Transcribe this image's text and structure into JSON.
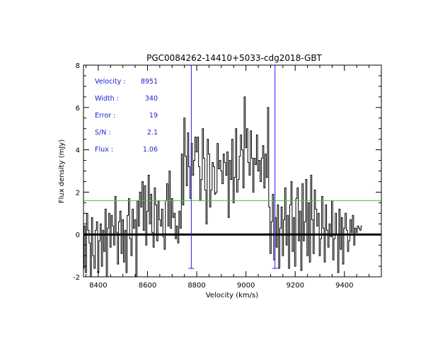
{
  "chart_data": {
    "type": "line",
    "title": "PGC0084262-14410+5033-cdg2018-GBT",
    "xlabel": "Velocity (km/s)",
    "ylabel": "Flux density (mJy)",
    "xlim": [
      8340,
      9550
    ],
    "ylim": [
      -2,
      8
    ],
    "xticks": [
      8400,
      8600,
      8800,
      9000,
      9200,
      9400
    ],
    "yticks": [
      -2,
      0,
      2,
      4,
      6,
      8
    ],
    "grid": false,
    "annotations": [
      {
        "label": "Velocity :",
        "value": "8951"
      },
      {
        "label": "Width :",
        "value": "340"
      },
      {
        "label": "Error :",
        "value": "19"
      },
      {
        "label": "S/N :",
        "value": "2.1"
      },
      {
        "label": "Flux :",
        "value": "1.06"
      }
    ],
    "zero_line": 0,
    "threshold_line": 1.6,
    "markers": [
      {
        "velocity": 8778,
        "y_top": 8,
        "y_bottom": -1.6
      },
      {
        "velocity": 9118,
        "y_top": 8,
        "y_bottom": -1.6
      }
    ],
    "series": [
      {
        "name": "spectrum",
        "x_start": 8340,
        "x_step": 5,
        "values": [
          -1.6,
          0.4,
          -1.8,
          1.0,
          0.2,
          -0.4,
          -2.0,
          0.8,
          -1.0,
          -1.6,
          0.2,
          0.6,
          -1.8,
          -0.3,
          0.5,
          -1.5,
          0.2,
          -0.8,
          1.2,
          -2.0,
          0.3,
          1.0,
          -0.6,
          0.9,
          0.4,
          -0.5,
          1.8,
          0.1,
          -1.4,
          0.6,
          1.1,
          -0.9,
          0.7,
          -1.3,
          0.2,
          -1.8,
          0.9,
          1.7,
          -0.2,
          -1.0,
          1.2,
          0.3,
          0.7,
          -2.0,
          1.6,
          0.4,
          2.0,
          1.3,
          2.5,
          0.2,
          2.3,
          -0.5,
          1.1,
          2.8,
          0.5,
          1.9,
          0.1,
          -0.6,
          2.2,
          1.4,
          -0.3,
          1.6,
          0.7,
          0.4,
          1.2,
          -0.1,
          -0.7,
          1.6,
          2.4,
          0.4,
          3.0,
          0.3,
          1.7,
          0.8,
          1.0,
          -0.2,
          0.4,
          -0.4,
          1.1,
          0.3,
          3.8,
          1.4,
          5.5,
          3.7,
          2.3,
          4.8,
          3.2,
          1.7,
          4.3,
          2.8,
          3.5,
          4.6,
          3.9,
          4.6,
          3.2,
          1.6,
          2.6,
          5.0,
          3.6,
          2.1,
          0.5,
          4.5,
          3.8,
          1.3,
          2.1,
          3.4,
          3.2,
          1.9,
          2.0,
          4.3,
          3.1,
          3.5,
          3.0,
          2.4,
          3.8,
          3.4,
          2.8,
          3.9,
          0.8,
          3.5,
          2.6,
          4.5,
          1.5,
          2.7,
          5.0,
          2.0,
          2.6,
          3.7,
          4.7,
          4.0,
          2.2,
          6.5,
          4.1,
          5.0,
          3.4,
          2.8,
          4.9,
          3.6,
          2.0,
          3.6,
          3.3,
          4.7,
          3.0,
          3.5,
          2.5,
          3.6,
          4.2,
          2.2,
          3.8,
          2.7,
          6.0,
          1.3,
          -0.9,
          0.6,
          1.9,
          -1.2,
          0.8,
          -0.6,
          1.4,
          -1.6,
          0.3,
          1.3,
          -1.0,
          0.7,
          2.2,
          -0.5,
          0.9,
          -1.6,
          1.4,
          2.5,
          -0.8,
          0.8,
          -1.5,
          1.7,
          2.2,
          -0.3,
          1.1,
          -1.7,
          2.4,
          -0.3,
          0.6,
          2.6,
          -1.0,
          1.5,
          -1.3,
          2.8,
          0.7,
          -0.9,
          2.1,
          1.2,
          0.4,
          1.0,
          -1.0,
          -0.2,
          1.8,
          0.3,
          -1.3,
          1.4,
          0.2,
          -0.6,
          0.5,
          -0.1,
          1.6,
          -1.2,
          -0.2,
          1.0,
          0.0,
          -1.8,
          1.2,
          -0.7,
          0.8,
          -1.4,
          0.3,
          1.0,
          0.2,
          -0.8,
          -0.3,
          0.7,
          0.1,
          0.9,
          -0.5,
          0.3,
          0.1,
          0.4,
          0.3,
          0.2,
          0.4
        ]
      }
    ],
    "colors": {
      "spectrum": "#000000",
      "zero_line": "#000000",
      "threshold_line": "#33cc33",
      "markers": "#2020ff",
      "annotations": "#2020d0"
    }
  }
}
